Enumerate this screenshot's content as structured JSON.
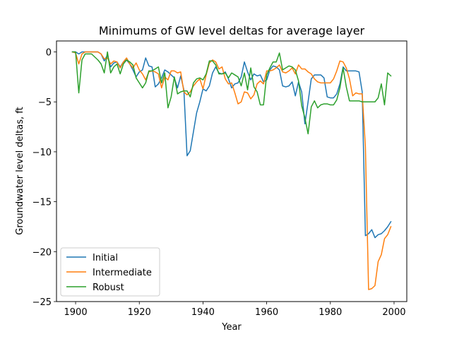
{
  "chart_data": {
    "type": "line",
    "title": "Minimums of GW level deltas for average layer",
    "xlabel": "Year",
    "ylabel": "Groundwater level deltas, ft",
    "xlim": [
      1894,
      2004
    ],
    "ylim": [
      -25,
      1.1
    ],
    "xticks": [
      1900,
      1920,
      1940,
      1960,
      1980,
      2000
    ],
    "yticks": [
      0,
      -5,
      -10,
      -15,
      -20,
      -25
    ],
    "grid": false,
    "legend_position": "lower-left",
    "series": [
      {
        "name": "Initial",
        "color": "#1f77b4",
        "x": [
          1899,
          1900,
          1901,
          1902,
          1903,
          1905,
          1907,
          1908,
          1909,
          1910,
          1911,
          1912,
          1913,
          1914,
          1915,
          1916,
          1917,
          1918,
          1919,
          1920,
          1921,
          1922,
          1923,
          1924,
          1925,
          1926,
          1927,
          1928,
          1929,
          1930,
          1931,
          1932,
          1933,
          1934,
          1935,
          1936,
          1937,
          1938,
          1939,
          1940,
          1941,
          1942,
          1943,
          1944,
          1945,
          1946,
          1947,
          1948,
          1949,
          1950,
          1951,
          1952,
          1953,
          1954,
          1955,
          1956,
          1957,
          1958,
          1959,
          1960,
          1961,
          1962,
          1963,
          1964,
          1965,
          1966,
          1967,
          1968,
          1969,
          1970,
          1971,
          1972,
          1973,
          1974,
          1975,
          1976,
          1977,
          1978,
          1979,
          1980,
          1981,
          1982,
          1983,
          1984,
          1985,
          1986,
          1987,
          1988,
          1989,
          1990,
          1991,
          1992,
          1993,
          1994,
          1995,
          1996,
          1997,
          1998,
          1999
        ],
        "y": [
          0,
          0,
          -0.2,
          0,
          0,
          0,
          0,
          -0.2,
          -0.9,
          -0.3,
          -1.5,
          -1.1,
          -1.0,
          -1.5,
          -1.0,
          -0.8,
          -1.2,
          -1.8,
          -2.5,
          -2.0,
          -1.8,
          -0.6,
          -1.4,
          -1.5,
          -3.5,
          -3.2,
          -2.6,
          -1.8,
          -2.0,
          -2.3,
          -2.6,
          -3.6,
          -2.4,
          -3.8,
          -10.4,
          -9.9,
          -8.0,
          -6.1,
          -5.0,
          -3.7,
          -3.9,
          -3.4,
          -2.1,
          -1.5,
          -2.1,
          -2.2,
          -2.0,
          -2.7,
          -3.6,
          -3.2,
          -3.1,
          -2.5,
          -1.0,
          -2.0,
          -2.8,
          -2.2,
          -2.4,
          -2.3,
          -3.0,
          -2.8,
          -1.8,
          -1.4,
          -1.5,
          -1.8,
          -3.4,
          -3.5,
          -3.4,
          -3.0,
          -4.4,
          -3.0,
          -4.0,
          -7.2,
          -5.0,
          -2.7,
          -2.3,
          -2.3,
          -2.3,
          -2.6,
          -4.5,
          -4.6,
          -4.6,
          -4.2,
          -3.2,
          -1.5,
          -1.9,
          -1.9,
          -1.9,
          -1.9,
          -2.0,
          -4.0,
          -18.4,
          -18.2,
          -17.8,
          -18.6,
          -18.3,
          -18.2,
          -17.9,
          -17.5,
          -17.0
        ]
      },
      {
        "name": "Intermediate",
        "color": "#ff7f0e",
        "x": [
          1899,
          1900,
          1901,
          1902,
          1903,
          1905,
          1907,
          1908,
          1909,
          1910,
          1911,
          1912,
          1913,
          1914,
          1915,
          1916,
          1917,
          1918,
          1919,
          1920,
          1921,
          1922,
          1923,
          1924,
          1925,
          1926,
          1927,
          1928,
          1929,
          1930,
          1931,
          1932,
          1933,
          1934,
          1935,
          1936,
          1937,
          1938,
          1939,
          1940,
          1941,
          1942,
          1943,
          1944,
          1945,
          1946,
          1947,
          1948,
          1949,
          1950,
          1951,
          1952,
          1953,
          1954,
          1955,
          1956,
          1957,
          1958,
          1959,
          1960,
          1961,
          1962,
          1963,
          1964,
          1965,
          1966,
          1967,
          1968,
          1969,
          1970,
          1971,
          1972,
          1973,
          1974,
          1975,
          1976,
          1977,
          1978,
          1979,
          1980,
          1981,
          1982,
          1983,
          1984,
          1985,
          1986,
          1987,
          1988,
          1989,
          1990,
          1991,
          1992,
          1993,
          1994,
          1995,
          1996,
          1997,
          1998,
          1999
        ],
        "y": [
          0,
          -0.1,
          -1.2,
          -0.2,
          0,
          0,
          0,
          -0.2,
          -0.7,
          -0.6,
          -1.2,
          -0.9,
          -1.0,
          -1.6,
          -1.0,
          -0.6,
          -1.2,
          -1.6,
          -1.1,
          -1.8,
          -2.2,
          -2.8,
          -2.0,
          -1.9,
          -2.0,
          -2.2,
          -3.6,
          -2.5,
          -2.8,
          -1.9,
          -1.9,
          -2.1,
          -2.0,
          -4.0,
          -4.3,
          -4.0,
          -3.4,
          -3.0,
          -2.7,
          -3.7,
          -2.3,
          -1.1,
          -0.8,
          -1.0,
          -1.7,
          -1.5,
          -2.7,
          -3.2,
          -3.1,
          -4.1,
          -5.2,
          -5.0,
          -4.0,
          -4.1,
          -4.7,
          -4.3,
          -3.2,
          -2.9,
          -3.2,
          -1.9,
          -1.9,
          -1.8,
          -1.6,
          -1.3,
          -2.0,
          -2.1,
          -1.9,
          -1.6,
          -2.2,
          -1.3,
          -1.7,
          -1.7,
          -2.0,
          -2.2,
          -2.7,
          -3.0,
          -3.1,
          -3.1,
          -3.1,
          -3.1,
          -2.7,
          -1.9,
          -0.9,
          -1.0,
          -1.6,
          -2.7,
          -4.4,
          -4.1,
          -4.2,
          -4.2,
          -9.5,
          -23.8,
          -23.7,
          -23.4,
          -21.0,
          -20.3,
          -18.7,
          -18.3,
          -17.5
        ]
      },
      {
        "name": "Robust",
        "color": "#2ca02c",
        "x": [
          1899,
          1900,
          1901,
          1902,
          1903,
          1905,
          1907,
          1908,
          1909,
          1910,
          1911,
          1912,
          1913,
          1914,
          1915,
          1916,
          1917,
          1918,
          1919,
          1920,
          1921,
          1922,
          1923,
          1924,
          1925,
          1926,
          1927,
          1928,
          1929,
          1930,
          1931,
          1932,
          1933,
          1934,
          1935,
          1936,
          1937,
          1938,
          1939,
          1940,
          1941,
          1942,
          1943,
          1944,
          1945,
          1946,
          1947,
          1948,
          1949,
          1950,
          1951,
          1952,
          1953,
          1954,
          1955,
          1956,
          1957,
          1958,
          1959,
          1960,
          1961,
          1962,
          1963,
          1964,
          1965,
          1966,
          1967,
          1968,
          1969,
          1970,
          1971,
          1972,
          1973,
          1974,
          1975,
          1976,
          1977,
          1978,
          1979,
          1980,
          1981,
          1982,
          1983,
          1984,
          1985,
          1986,
          1987,
          1988,
          1989,
          1990,
          1991,
          1992,
          1993,
          1994,
          1995,
          1996,
          1997,
          1998,
          1999
        ],
        "y": [
          0,
          0,
          -4.1,
          -0.8,
          -0.2,
          -0.2,
          -0.8,
          -1.2,
          -2.1,
          0,
          -2.1,
          -1.5,
          -1.2,
          -2.2,
          -1.2,
          -0.8,
          -1.0,
          -1.3,
          -2.6,
          -3.1,
          -3.6,
          -3.1,
          -1.9,
          -1.9,
          -1.7,
          -1.5,
          -3.1,
          -2.1,
          -5.6,
          -4.5,
          -2.5,
          -4.2,
          -4.0,
          -3.9,
          -3.9,
          -4.5,
          -3.1,
          -2.7,
          -2.6,
          -2.8,
          -2.2,
          -0.9,
          -0.9,
          -1.3,
          -2.2,
          -2.2,
          -2.1,
          -2.6,
          -2.1,
          -2.3,
          -2.5,
          -3.4,
          -2.1,
          -3.8,
          -1.6,
          -3.5,
          -4.0,
          -5.3,
          -5.3,
          -2.3,
          -1.6,
          -1.0,
          -1.0,
          -0.1,
          -1.8,
          -1.6,
          -1.4,
          -1.5,
          -1.8,
          -2.9,
          -5.4,
          -6.6,
          -8.2,
          -5.5,
          -4.9,
          -5.6,
          -5.3,
          -5.2,
          -5.2,
          -5.3,
          -5.3,
          -4.8,
          -3.6,
          -1.6,
          -3.5,
          -4.9,
          -4.9,
          -4.9,
          -4.9,
          -5.0,
          -5.0,
          -5.0,
          -5.0,
          -5.0,
          -4.6,
          -3.2,
          -5.3,
          -2.1,
          -2.4
        ]
      }
    ]
  }
}
